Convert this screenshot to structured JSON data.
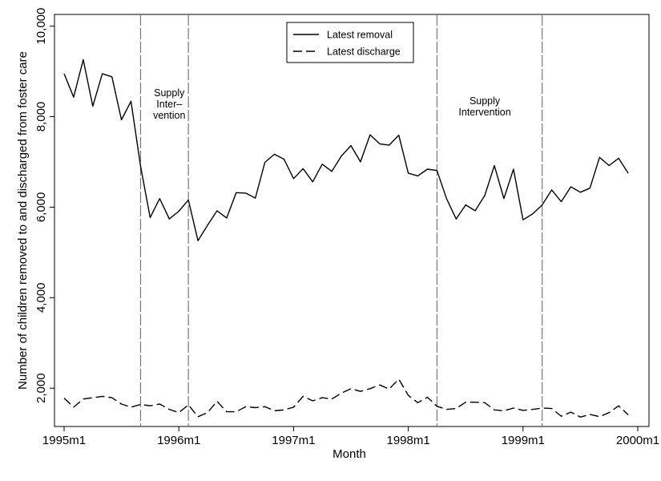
{
  "chart_data": {
    "type": "line",
    "xlabel": "Month",
    "ylabel": "Number of children removed to and discharged from foster care",
    "xlim": [
      "1995m1",
      "1999m12"
    ],
    "ylim": [
      1200,
      10000
    ],
    "x_ticks": [
      "1995m1",
      "1996m1",
      "1997m1",
      "1998m1",
      "1999m1",
      "2000m1"
    ],
    "y_ticks": [
      {
        "value": 2000,
        "label": "2,000"
      },
      {
        "value": 4000,
        "label": "4,000"
      },
      {
        "value": 6000,
        "label": "6,000"
      },
      {
        "value": 8000,
        "label": "8,000"
      },
      {
        "value": 10000,
        "label": "10,000"
      }
    ],
    "x": [
      "1995m1",
      "1995m2",
      "1995m3",
      "1995m4",
      "1995m5",
      "1995m6",
      "1995m7",
      "1995m8",
      "1995m9",
      "1995m10",
      "1995m11",
      "1995m12",
      "1996m1",
      "1996m2",
      "1996m3",
      "1996m4",
      "1996m5",
      "1996m6",
      "1996m7",
      "1996m8",
      "1996m9",
      "1996m10",
      "1996m11",
      "1996m12",
      "1997m1",
      "1997m2",
      "1997m3",
      "1997m4",
      "1997m5",
      "1997m6",
      "1997m7",
      "1997m8",
      "1997m9",
      "1997m10",
      "1997m11",
      "1997m12",
      "1998m1",
      "1998m2",
      "1998m3",
      "1998m4",
      "1998m5",
      "1998m6",
      "1998m7",
      "1998m8",
      "1998m9",
      "1998m10",
      "1998m11",
      "1998m12",
      "1999m1",
      "1999m2",
      "1999m3",
      "1999m4",
      "1999m5",
      "1999m6",
      "1999m7",
      "1999m8",
      "1999m9",
      "1999m10",
      "1999m11",
      "1999m12"
    ],
    "series": [
      {
        "name": "Latest removal",
        "style": "solid",
        "values": [
          8950,
          8430,
          9260,
          8230,
          8950,
          8880,
          7930,
          8340,
          6900,
          5770,
          6190,
          5740,
          5910,
          6160,
          5260,
          5600,
          5920,
          5760,
          6320,
          6310,
          6200,
          6990,
          7170,
          7060,
          6630,
          6850,
          6560,
          6950,
          6790,
          7130,
          7360,
          7000,
          7600,
          7400,
          7370,
          7590,
          6750,
          6690,
          6840,
          6810,
          6190,
          5740,
          6050,
          5920,
          6260,
          6920,
          6190,
          6840,
          5720,
          5850,
          6050,
          6380,
          6120,
          6450,
          6330,
          6420,
          7100,
          6920,
          7080,
          6750
        ]
      },
      {
        "name": "Latest discharge",
        "style": "dashed",
        "values": [
          1780,
          1580,
          1760,
          1790,
          1820,
          1790,
          1650,
          1580,
          1640,
          1610,
          1650,
          1530,
          1460,
          1630,
          1370,
          1460,
          1710,
          1480,
          1480,
          1590,
          1570,
          1590,
          1500,
          1520,
          1580,
          1820,
          1720,
          1790,
          1760,
          1890,
          1990,
          1930,
          1990,
          2070,
          1980,
          2200,
          1840,
          1680,
          1800,
          1600,
          1530,
          1550,
          1690,
          1690,
          1680,
          1520,
          1500,
          1560,
          1510,
          1530,
          1560,
          1550,
          1380,
          1470,
          1360,
          1420,
          1370,
          1460,
          1610,
          1410
        ]
      }
    ],
    "reference_lines": [
      "1995m9",
      "1996m2",
      "1998m4",
      "1999m3"
    ],
    "annotations": [
      {
        "lines": [
          "Supply",
          "Inter–",
          "vention"
        ],
        "x": "1996m0",
        "y": 8200
      },
      {
        "lines": [
          "Supply",
          "Intervention"
        ],
        "x": "1998m9",
        "y": 8150
      }
    ],
    "legend": {
      "placement": "top-center"
    },
    "grid": false
  }
}
